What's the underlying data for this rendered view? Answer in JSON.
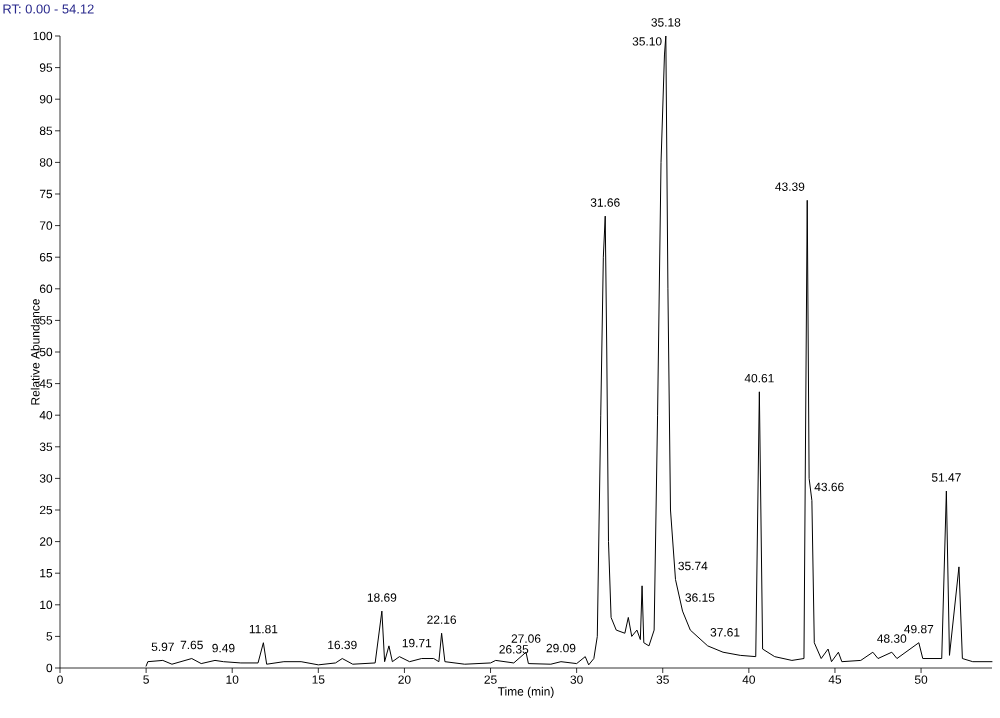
{
  "chart_data": {
    "type": "line",
    "title": "RT: 0.00 - 54.12",
    "xlabel": "Time (min)",
    "ylabel": "Relative Abundance",
    "xlim": [
      0,
      54.12
    ],
    "ylim": [
      0,
      100
    ],
    "xticks": [
      0,
      5,
      10,
      15,
      20,
      25,
      30,
      35,
      40,
      45,
      50
    ],
    "yticks": [
      0,
      5,
      10,
      15,
      20,
      25,
      30,
      35,
      40,
      45,
      50,
      55,
      60,
      65,
      70,
      75,
      80,
      85,
      90,
      95,
      100
    ],
    "grid": false,
    "marker": "none",
    "line_style": "solid",
    "series": [
      {
        "color": "#000000",
        "x": [
          5.0,
          5.1,
          5.97,
          6.5,
          7.65,
          8.2,
          9.0,
          9.49,
          10.5,
          11.5,
          11.81,
          12.0,
          13.0,
          14.0,
          15.0,
          16.0,
          16.39,
          17.0,
          18.3,
          18.69,
          18.85,
          19.1,
          19.3,
          19.71,
          20.3,
          21.0,
          21.7,
          22.0,
          22.16,
          22.35,
          23.5,
          25.0,
          25.3,
          26.35,
          27.06,
          27.2,
          28.5,
          29.09,
          30.0,
          30.5,
          30.7,
          31.0,
          31.2,
          31.4,
          31.55,
          31.66,
          31.75,
          31.85,
          32.0,
          32.3,
          32.8,
          33.0,
          33.2,
          33.5,
          33.7,
          33.8,
          33.9,
          34.2,
          34.5,
          34.7,
          34.9,
          35.1,
          35.18,
          35.3,
          35.45,
          35.74,
          36.15,
          36.6,
          37.61,
          38.5,
          39.5,
          40.4,
          40.61,
          40.8,
          41.5,
          42.5,
          43.2,
          43.39,
          43.5,
          43.66,
          43.8,
          44.2,
          44.6,
          44.8,
          45.2,
          45.4,
          46.5,
          47.2,
          47.5,
          48.3,
          48.6,
          49.87,
          50.1,
          51.2,
          51.47,
          51.65,
          52.2,
          52.4,
          53.0,
          54.12
        ],
        "values": [
          0.3,
          1.0,
          1.2,
          0.6,
          1.5,
          0.7,
          1.2,
          1.0,
          0.8,
          0.8,
          4.0,
          0.6,
          1.0,
          1.0,
          0.5,
          0.8,
          1.5,
          0.6,
          0.8,
          9.0,
          1.0,
          3.5,
          1.0,
          1.8,
          1.0,
          1.5,
          1.5,
          1.0,
          5.5,
          1.0,
          0.6,
          0.8,
          1.2,
          0.8,
          2.5,
          0.7,
          0.6,
          1.0,
          0.7,
          1.8,
          0.5,
          1.5,
          5,
          40,
          65,
          71.5,
          50,
          20,
          8,
          6,
          5.5,
          8,
          5,
          6,
          4.5,
          13,
          4,
          3.5,
          6,
          40,
          80,
          97,
          100,
          60,
          25,
          14,
          9,
          6,
          3.5,
          2.5,
          2,
          1.8,
          43.7,
          3,
          1.8,
          1.2,
          1.5,
          74,
          30,
          26.5,
          4,
          1.5,
          3,
          1.0,
          2.5,
          1.0,
          1.2,
          2.5,
          1.5,
          2.5,
          1.5,
          4.0,
          1.5,
          1.5,
          28,
          2,
          16,
          1.5,
          1.0,
          1.0
        ]
      }
    ],
    "annotations": [
      {
        "text": "5.97",
        "x": 5.97,
        "y": 1.2
      },
      {
        "text": "7.65",
        "x": 7.65,
        "y": 1.5
      },
      {
        "text": "9.49",
        "x": 9.49,
        "y": 1.0
      },
      {
        "text": "11.81",
        "x": 11.81,
        "y": 4.0
      },
      {
        "text": "16.39",
        "x": 16.39,
        "y": 1.5
      },
      {
        "text": "18.69",
        "x": 18.69,
        "y": 9.0
      },
      {
        "text": "19.71",
        "x": 19.71,
        "y": 1.8
      },
      {
        "text": "22.16",
        "x": 22.16,
        "y": 5.5
      },
      {
        "text": "26.35",
        "x": 26.35,
        "y": 0.8
      },
      {
        "text": "27.06",
        "x": 27.06,
        "y": 2.5
      },
      {
        "text": "29.09",
        "x": 29.09,
        "y": 1.0
      },
      {
        "text": "31.66",
        "x": 31.66,
        "y": 71.5
      },
      {
        "text": "35.10",
        "x": 35.1,
        "y": 97
      },
      {
        "text": "35.18",
        "x": 35.18,
        "y": 100
      },
      {
        "text": "35.74",
        "x": 35.74,
        "y": 14
      },
      {
        "text": "36.15",
        "x": 36.15,
        "y": 9
      },
      {
        "text": "37.61",
        "x": 37.61,
        "y": 3.5
      },
      {
        "text": "40.61",
        "x": 40.61,
        "y": 43.7
      },
      {
        "text": "43.39",
        "x": 43.39,
        "y": 74
      },
      {
        "text": "43.66",
        "x": 43.66,
        "y": 26.5
      },
      {
        "text": "48.30",
        "x": 48.3,
        "y": 2.5
      },
      {
        "text": "49.87",
        "x": 49.87,
        "y": 4.0
      },
      {
        "text": "51.47",
        "x": 51.47,
        "y": 28
      }
    ]
  }
}
